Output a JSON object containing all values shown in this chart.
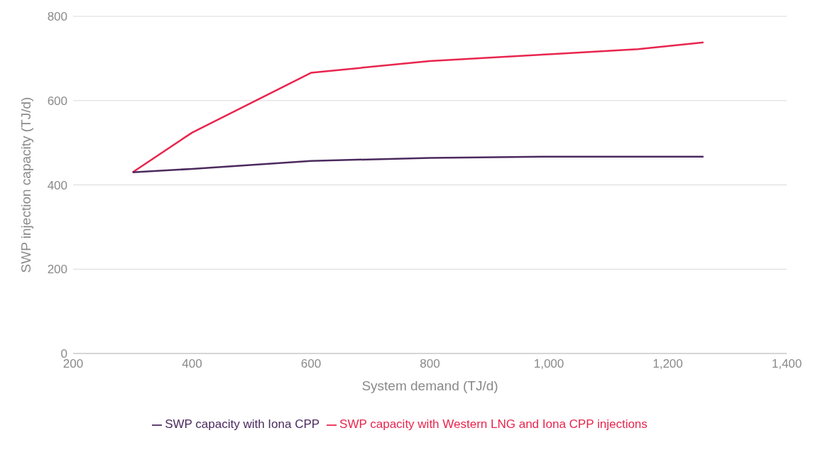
{
  "chart_data": {
    "type": "line",
    "xlabel": "System demand (TJ/d)",
    "ylabel": "SWP injection capacity (TJ/d)",
    "xlim": [
      200,
      1400
    ],
    "xticks": [
      200,
      400,
      600,
      800,
      {
        "value": 1000,
        "label": "1,000"
      },
      {
        "value": 1200,
        "label": "1,200"
      },
      {
        "value": 1400,
        "label": "1,400"
      }
    ],
    "ylim": [
      0,
      800
    ],
    "yticks": [
      0,
      200,
      400,
      600,
      800
    ],
    "grid": "y",
    "legend": "bottom",
    "marker": "none",
    "line_style": "solid",
    "series": [
      {
        "name": "SWP capacity with Western LNG and Iona CPP injections",
        "color": "#e8254e",
        "x": [
          300,
          400,
          600,
          800,
          1000,
          1150,
          1260
        ],
        "values": [
          430,
          524,
          666,
          694,
          710,
          722,
          738
        ]
      },
      {
        "name": "SWP capacity with Iona CPP",
        "color": "#4b2a5e",
        "x": [
          300,
          400,
          600,
          800,
          1000,
          1260
        ],
        "values": [
          430,
          438,
          457,
          464,
          467,
          467
        ]
      }
    ]
  }
}
